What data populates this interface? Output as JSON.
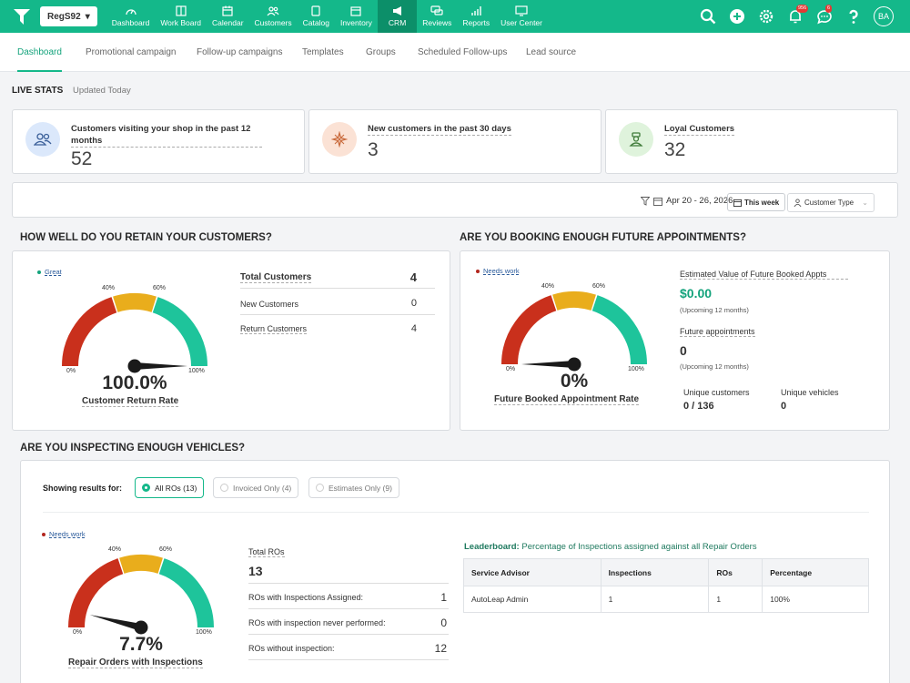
{
  "store": "RegS92",
  "nav": [
    {
      "label": "Dashboard",
      "icon": "dashboard-icon"
    },
    {
      "label": "Work Board",
      "icon": "workboard-icon"
    },
    {
      "label": "Calendar",
      "icon": "calendar-icon"
    },
    {
      "label": "Customers",
      "icon": "customers-icon"
    },
    {
      "label": "Catalog",
      "icon": "catalog-icon"
    },
    {
      "label": "Inventory",
      "icon": "inventory-icon"
    },
    {
      "label": "CRM",
      "icon": "megaphone-icon"
    },
    {
      "label": "Reviews",
      "icon": "reviews-icon"
    },
    {
      "label": "Reports",
      "icon": "reports-icon"
    },
    {
      "label": "User Center",
      "icon": "user-center-icon"
    }
  ],
  "top_icons": {
    "notif_badge": "956",
    "chat_badge": "6",
    "avatar": "BA"
  },
  "subtabs": [
    "Dashboard",
    "Promotional campaign",
    "Follow-up campaigns",
    "Templates",
    "Groups",
    "Scheduled Follow-ups",
    "Lead source"
  ],
  "live": {
    "title": "LIVE STATS",
    "updated": "Updated Today"
  },
  "stats": [
    {
      "label": "Customers visiting your shop in the past 12 months",
      "value": "52"
    },
    {
      "label": "New customers in the past 30 days",
      "value": "3"
    },
    {
      "label": "Loyal Customers",
      "value": "32"
    }
  ],
  "filter": {
    "date": "Apr 20 - 26, 2026",
    "week": "This week",
    "customer_type": "Customer Type"
  },
  "retain": {
    "title": "HOW WELL DO YOU RETAIN YOUR CUSTOMERS?",
    "status": "Great",
    "value": "100.0%",
    "fraction": 1.0,
    "caption": "Customer Return Rate",
    "rows": [
      {
        "label": "Total Customers",
        "value": "4"
      },
      {
        "label": "New Customers",
        "value": "0"
      },
      {
        "label": "Return Customers",
        "value": "4"
      }
    ]
  },
  "booking": {
    "title": "ARE YOU BOOKING ENOUGH FUTURE APPOINTMENTS?",
    "status": "Needs work",
    "value": "0%",
    "fraction": 0.0,
    "caption": "Future Booked Appointment Rate",
    "est_label": "Estimated Value of Future Booked Appts",
    "est_value": "$0.00",
    "est_note": "(Upcoming 12 months)",
    "future_label": "Future appointments",
    "future_value": "0",
    "future_note": "(Upcoming 12 months)",
    "uc_label": "Unique customers",
    "uc_value": "0 / 136",
    "uv_label": "Unique vehicles",
    "uv_value": "0"
  },
  "gauge_labels": {
    "min": "0%",
    "l40": "40%",
    "l60": "60%",
    "max": "100%"
  },
  "inspect": {
    "title": "ARE YOU INSPECTING ENOUGH VEHICLES?",
    "showing": "Showing results for:",
    "filters": [
      "All ROs (13)",
      "Invoiced Only (4)",
      "Estimates Only (9)"
    ],
    "status": "Needs work",
    "value": "7.7%",
    "fraction": 0.077,
    "caption": "Repair Orders with Inspections",
    "total_label": "Total ROs",
    "total_value": "13",
    "rows": [
      {
        "label": "ROs with Inspections Assigned:",
        "value": "1"
      },
      {
        "label": "ROs with inspection never performed:",
        "value": "0"
      },
      {
        "label": "ROs without inspection:",
        "value": "12"
      }
    ],
    "leaderboard_label": "Leaderboard:",
    "leaderboard_desc": "Percentage of Inspections assigned against all Repair Orders",
    "table": {
      "headers": [
        "Service Advisor",
        "Inspections",
        "ROs",
        "Percentage"
      ],
      "rows": [
        [
          "AutoLeap Admin",
          "1",
          "1",
          "100%"
        ]
      ]
    }
  },
  "colors": {
    "accent": "#14b88a",
    "red": "#c9301c",
    "amber": "#e9ad1c",
    "teal": "#1ec49b",
    "good": "#14a37c",
    "bad": "#b3261e"
  }
}
